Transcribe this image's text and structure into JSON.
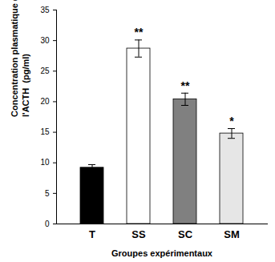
{
  "chart_data": {
    "type": "bar",
    "categories": [
      "T",
      "SS",
      "SC",
      "SM"
    ],
    "values": [
      9.2,
      28.7,
      20.4,
      14.8
    ],
    "errors": [
      0.5,
      1.4,
      1.0,
      0.8
    ],
    "annotations": [
      null,
      "**",
      "**",
      "*"
    ],
    "colors": [
      "#000000",
      "#ffffff",
      "#808080",
      "#e6e6e6"
    ],
    "x_label": "Groupes expérimentaux",
    "y_label": "Concentration plasmatique de\nl'ACTH  (pg/ml)",
    "ylim": [
      0,
      35
    ],
    "yticks": [
      0,
      5,
      10,
      15,
      20,
      25,
      30,
      35
    ],
    "grid": false
  }
}
